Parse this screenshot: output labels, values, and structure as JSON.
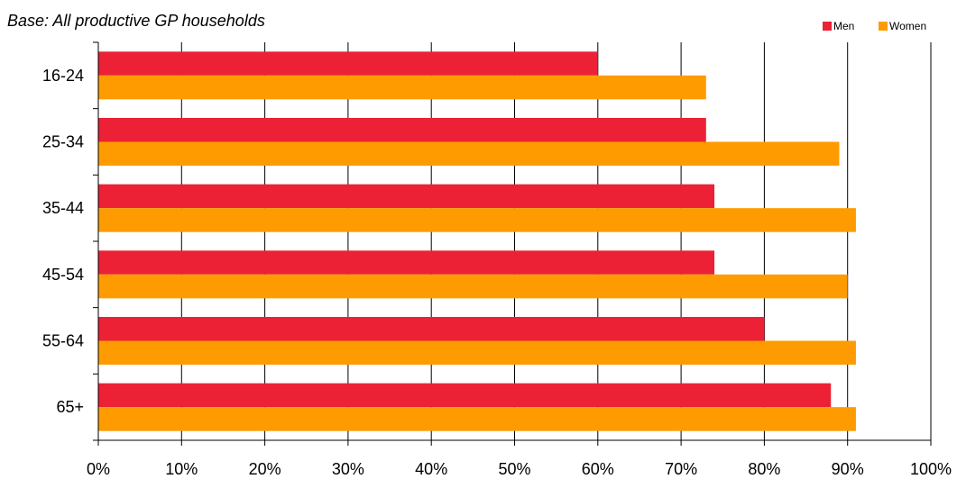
{
  "subtitle": "Base: All productive GP households",
  "legend": [
    {
      "label": "Men",
      "color": "#ec2135"
    },
    {
      "label": "Women",
      "color": "#fd9b00"
    }
  ],
  "chart_data": {
    "type": "bar",
    "orientation": "horizontal",
    "categories": [
      "16-24",
      "25-34",
      "35-44",
      "45-54",
      "55-64",
      "65+"
    ],
    "series": [
      {
        "name": "Men",
        "color": "#ec2135",
        "values": [
          60,
          73,
          74,
          74,
          80,
          88
        ]
      },
      {
        "name": "Women",
        "color": "#fd9b00",
        "values": [
          73,
          89,
          91,
          90,
          91,
          91
        ]
      }
    ],
    "x_ticks": [
      "0%",
      "10%",
      "20%",
      "30%",
      "40%",
      "50%",
      "60%",
      "70%",
      "80%",
      "90%",
      "100%"
    ],
    "xlim": [
      0,
      100
    ],
    "grid": true,
    "legend_position": "top-right"
  }
}
